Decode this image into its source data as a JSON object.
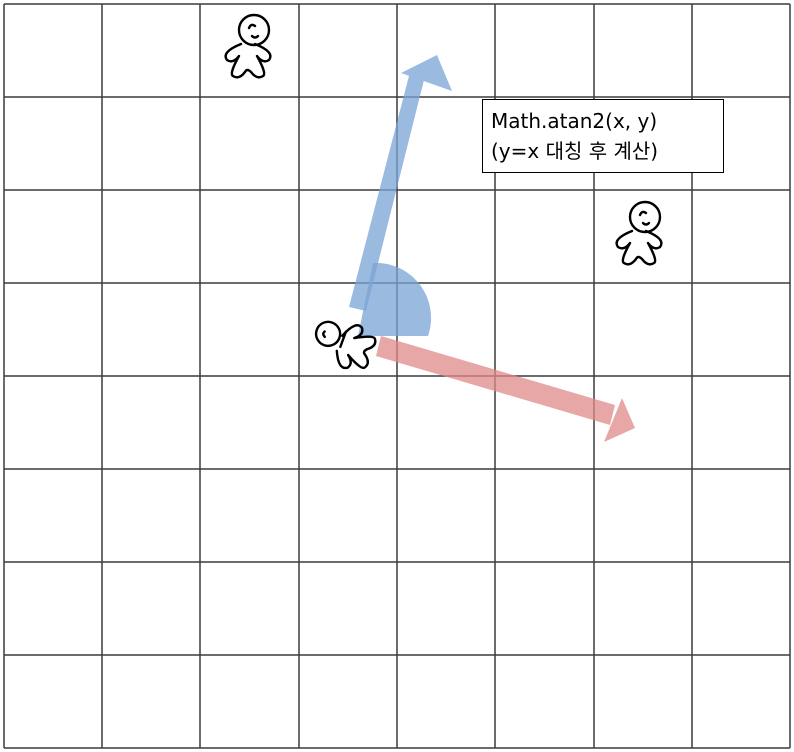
{
  "annotation": {
    "line1": "Math.atan2(x, y)",
    "line2": "(y=x 대칭 후 계산)"
  },
  "grid": {
    "columns": 8,
    "rows": 8,
    "line_color": "#3c3c3c"
  },
  "arrows": {
    "forward": {
      "color": "#7aa3d6",
      "icon": "arrow-up-icon"
    },
    "target": {
      "color": "#e08a8a",
      "icon": "arrow-right-icon"
    }
  },
  "angle_wedge": {
    "color": "#7aa3d6"
  },
  "figures": {
    "player": "player-figure-icon",
    "enemy_1": "person-figure-icon",
    "enemy_2": "person-figure-icon"
  }
}
